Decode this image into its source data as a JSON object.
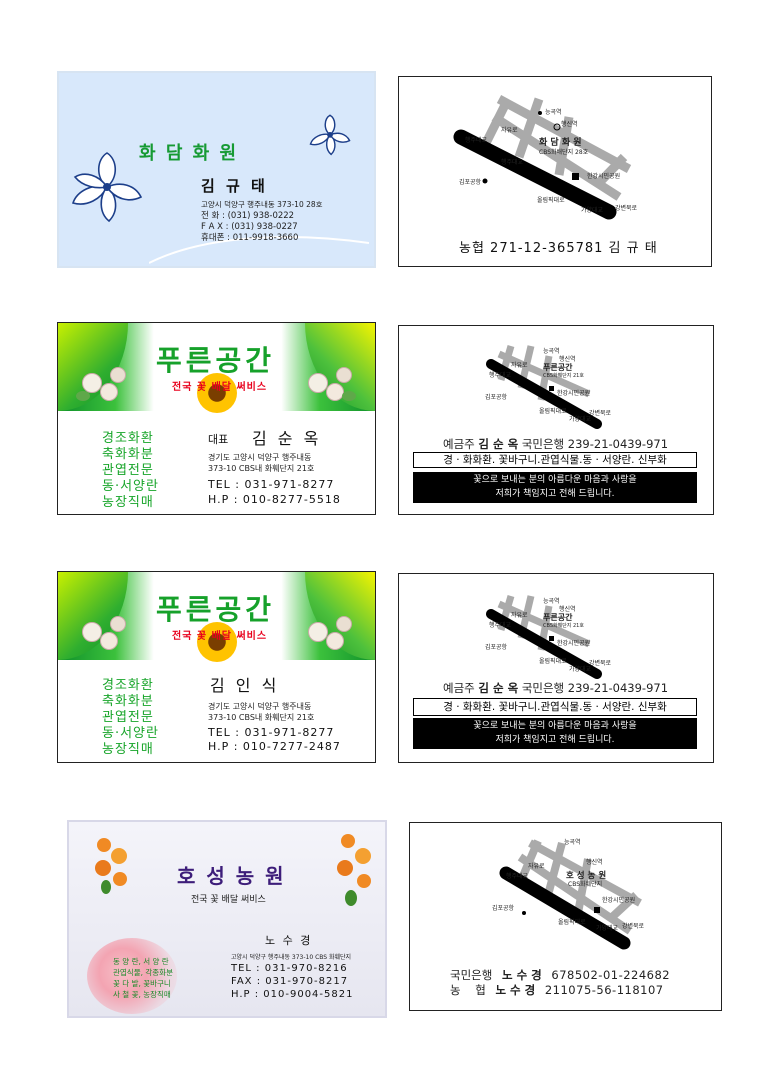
{
  "card1_front": {
    "logo": "화 담 화 원",
    "name": "김 규 태",
    "address": "고양시 덕양구 행주내동 373-10 28호",
    "phone": "전 화 : (031) 938-0222",
    "fax": "F A X : (031) 938-0227",
    "mobile": "휴대폰 : 011-9918-3660"
  },
  "card1_back": {
    "map_labels": [
      "능곡역",
      "행신역",
      "자유로",
      "행주대교",
      "화 담 화 원",
      "CBS화배단지 28호",
      "행주대교",
      "김포공항",
      "한강시민공원",
      "올림픽대로",
      "가양대교",
      "강변북로"
    ],
    "bank": "농협 271-12-365781 김 규 태"
  },
  "card2_front": {
    "logo": "푸른공간",
    "tagline": "전국 꽃 배달 써비스",
    "services": [
      "경조화환",
      "축화화분",
      "관엽전문",
      "동·서양란",
      "농장직매"
    ],
    "title": "대표",
    "name": "김 순 옥",
    "address1": "경기도 고양시 덕양구 행주내동",
    "address2": "373-10 CBS내 화훼단지 21호",
    "tel": "TEL : 031-971-8277",
    "hp": "H.P : 010-8277-5518"
  },
  "card2_back": {
    "map_labels": [
      "능곡역",
      "행신역",
      "자유로",
      "행주대교",
      "푸른공간",
      "CBS화훼단지 21호",
      "한강시민공원",
      "김포공항",
      "올림픽대로",
      "가양대교",
      "강변북로"
    ],
    "bank_prefix": "예금주",
    "bank_holder": "김 순 옥",
    "bank_info": "국민은행 239-21-0439-971",
    "goods": "경 · 화화환. 꽃바구니.관엽식물.동 · 서양란. 신부화",
    "message1": "꽃으로 보내는 분의 아름다운 마음과 사랑을",
    "message2": "저희가 책임지고 전해 드립니다."
  },
  "card3_front": {
    "logo": "푸른공간",
    "tagline": "전국 꽃 배달 써비스",
    "services": [
      "경조화환",
      "축화화분",
      "관엽전문",
      "동·서양란",
      "농장직매"
    ],
    "name": "김 인 식",
    "address1": "경기도 고양시 덕양구 행주내동",
    "address2": "373-10 CBS내 화훼단지 21호",
    "tel": "TEL : 031-971-8277",
    "hp": "H.P : 010-7277-2487"
  },
  "card3_back": {
    "map_labels": [
      "능곡역",
      "행신역",
      "자유로",
      "행주대교",
      "푸른공간",
      "CBS화훼단지 21호",
      "한강시민공원",
      "김포공항",
      "올림픽대로",
      "가양대교",
      "강변북로"
    ],
    "bank_prefix": "예금주",
    "bank_holder": "김 순 옥",
    "bank_info": "국민은행 239-21-0439-971",
    "goods": "경 · 화화환. 꽃바구니.관엽식물.동 · 서양란. 신부화",
    "message1": "꽃으로 보내는 분의 아름다운 마음과 사랑을",
    "message2": "저희가 책임지고 전해 드립니다."
  },
  "card4_front": {
    "logo": "호 성 농 원",
    "tagline": "전국 꽃 배달 써비스",
    "name": "노 수 경",
    "address": "고양시 덕양구 행주내동 373-10 CBS 화훼단지",
    "tel": "TEL : 031-970-8216",
    "fax": "FAX : 031-970-8217",
    "hp": "H.P : 010-9004-5821",
    "services": [
      "동 양 란, 서 양 란",
      "관엽식물, 각종화분",
      "꽃 다 발, 꽃바구니",
      "사 철 꽃, 농장직매"
    ]
  },
  "card4_back": {
    "map_labels": [
      "능곡역",
      "행신역",
      "자유로",
      "행주대교",
      "호 성 농 원",
      "CBS화훼단지",
      "김포공항",
      "한강시민공원",
      "올림픽대로",
      "가양대교",
      "강변북로"
    ],
    "bank1_name": "국민은행",
    "bank1_holder": "노 수 경",
    "bank1_account": "678502-01-224682",
    "bank2_name": "농    협",
    "bank2_holder": "노 수 경",
    "bank2_account": "211075-56-118107"
  }
}
